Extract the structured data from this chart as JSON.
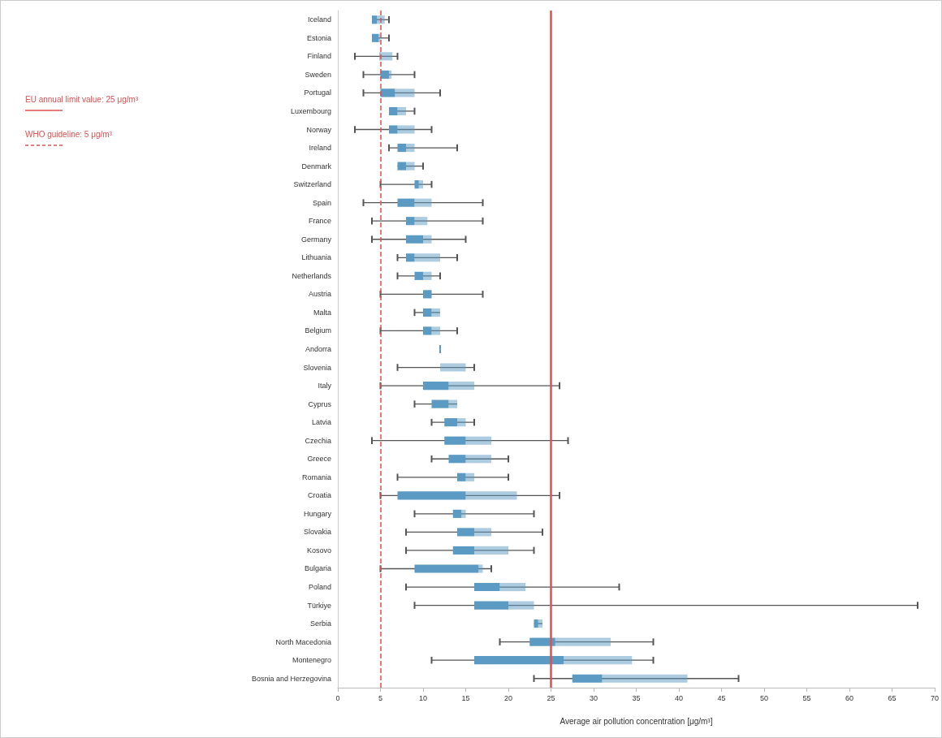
{
  "chart_data": {
    "type": "box",
    "orientation": "horizontal",
    "xlabel": "Average air pollution concentration [μg/m³]",
    "categories": [
      "Iceland",
      "Estonia",
      "Finland",
      "Sweden",
      "Portugal",
      "Luxembourg",
      "Norway",
      "Ireland",
      "Denmark",
      "Switzerland",
      "Spain",
      "France",
      "Germany",
      "Lithuania",
      "Netherlands",
      "Austria",
      "Malta",
      "Belgium",
      "Andorra",
      "Slovenia",
      "Italy",
      "Cyprus",
      "Latvia",
      "Czechia",
      "Greece",
      "Romania",
      "Croatia",
      "Hungary",
      "Slovakia",
      "Kosovo",
      "Bulgaria",
      "Poland",
      "Türkiye",
      "Serbia",
      "North Macedonia",
      "Montenegro",
      "Bosnia and Herzegovina"
    ],
    "colors": [
      "#5b9ac2",
      "#5b9ac2",
      "#5b9ac2",
      "#5b9ac2",
      "#5b9ac2",
      "#5b9ac2",
      "#5b9ac2",
      "#5b9ac2",
      "#5b9ac2",
      "#5b9ac2",
      "#5b9ac2",
      "#5b9ac2",
      "#5b9ac2",
      "#5b9ac2",
      "#5b9ac2",
      "#5b9ac2",
      "#5b9ac2",
      "#5b9ac2",
      "#5b9ac2",
      "#5b9ac2",
      "#5b9ac2",
      "#5b9ac2",
      "#5b9ac2",
      "#5b9ac2",
      "#5b9ac2",
      "#5b9ac2",
      "#5b9ac2",
      "#5b9ac2",
      "#5b9ac2",
      "#5b9ac2",
      "#5b9ac2",
      "#5b9ac2",
      "#5b9ac2",
      "#5b9ac2",
      "#5b9ac2",
      "#5b9ac2",
      "#5b9ac2"
    ],
    "boxes": [
      {
        "low": 4,
        "q1": 4,
        "median": 4.6,
        "q3": 5.5,
        "high": 6
      },
      {
        "low": 4,
        "q1": 4,
        "median": 4.8,
        "q3": 5,
        "high": 6
      },
      {
        "low": 2,
        "q1": 4.9,
        "median": 5,
        "q3": 6.4,
        "high": 7
      },
      {
        "low": 3,
        "q1": 5,
        "median": 6,
        "q3": 6.3,
        "high": 9
      },
      {
        "low": 3,
        "q1": 5,
        "median": 6.7,
        "q3": 9,
        "high": 12
      },
      {
        "low": 6,
        "q1": 6,
        "median": 7,
        "q3": 8,
        "high": 9
      },
      {
        "low": 2,
        "q1": 6,
        "median": 7,
        "q3": 9,
        "high": 11
      },
      {
        "low": 6,
        "q1": 7,
        "median": 8,
        "q3": 9,
        "high": 14
      },
      {
        "low": 7,
        "q1": 7,
        "median": 8,
        "q3": 9,
        "high": 10
      },
      {
        "low": 5,
        "q1": 9,
        "median": 9.5,
        "q3": 10,
        "high": 11
      },
      {
        "low": 3,
        "q1": 7,
        "median": 9,
        "q3": 11,
        "high": 17
      },
      {
        "low": 4,
        "q1": 8,
        "median": 9,
        "q3": 10.5,
        "high": 17
      },
      {
        "low": 4,
        "q1": 8,
        "median": 10,
        "q3": 11,
        "high": 15
      },
      {
        "low": 7,
        "q1": 8,
        "median": 9,
        "q3": 12,
        "high": 14
      },
      {
        "low": 7,
        "q1": 9,
        "median": 10,
        "q3": 11,
        "high": 12
      },
      {
        "low": 5,
        "q1": 10,
        "median": 11,
        "q3": 11,
        "high": 17
      },
      {
        "low": 9,
        "q1": 10,
        "median": 11,
        "q3": 12,
        "high": 12
      },
      {
        "low": 5,
        "q1": 10,
        "median": 11,
        "q3": 12,
        "high": 14
      },
      {
        "low": 12,
        "q1": 12,
        "median": 12,
        "q3": 12,
        "high": 12
      },
      {
        "low": 7,
        "q1": 12,
        "median": 12,
        "q3": 15,
        "high": 16
      },
      {
        "low": 5,
        "q1": 10,
        "median": 13,
        "q3": 16,
        "high": 26
      },
      {
        "low": 9,
        "q1": 11,
        "median": 13,
        "q3": 14,
        "high": 14
      },
      {
        "low": 11,
        "q1": 12.5,
        "median": 14,
        "q3": 15,
        "high": 16
      },
      {
        "low": 4,
        "q1": 12.5,
        "median": 15,
        "q3": 18,
        "high": 27
      },
      {
        "low": 11,
        "q1": 13,
        "median": 15,
        "q3": 18,
        "high": 20
      },
      {
        "low": 7,
        "q1": 14,
        "median": 15,
        "q3": 16,
        "high": 20
      },
      {
        "low": 5,
        "q1": 7,
        "median": 15,
        "q3": 21,
        "high": 26
      },
      {
        "low": 9,
        "q1": 13.5,
        "median": 14.5,
        "q3": 15,
        "high": 23
      },
      {
        "low": 8,
        "q1": 14,
        "median": 16,
        "q3": 18,
        "high": 24
      },
      {
        "low": 8,
        "q1": 13.5,
        "median": 16,
        "q3": 20,
        "high": 23
      },
      {
        "low": 5,
        "q1": 9,
        "median": 16.5,
        "q3": 17,
        "high": 18
      },
      {
        "low": 8,
        "q1": 16,
        "median": 19,
        "q3": 22,
        "high": 33
      },
      {
        "low": 9,
        "q1": 16,
        "median": 20,
        "q3": 23,
        "high": 68
      },
      {
        "low": 23,
        "q1": 23,
        "median": 23.5,
        "q3": 24,
        "high": 24
      },
      {
        "low": 19,
        "q1": 22.5,
        "median": 25.5,
        "q3": 32,
        "high": 37
      },
      {
        "low": 11,
        "q1": 16,
        "median": 26.5,
        "q3": 34.5,
        "high": 37
      },
      {
        "low": 23,
        "q1": 27.5,
        "median": 31,
        "q3": 41,
        "high": 47
      }
    ],
    "xlim": [
      0,
      70
    ],
    "xticks": [
      0,
      5,
      10,
      15,
      20,
      25,
      30,
      35,
      40,
      45,
      50,
      55,
      60,
      65,
      70
    ],
    "grid": false,
    "ref_lines": [
      {
        "axis": "x",
        "value": 25,
        "label": "EU annual limit value: 25 μg/m³",
        "color": "#e05050",
        "line_style": "solid"
      },
      {
        "axis": "x",
        "value": 5,
        "label": "WHO guideline: 5 μg/m³",
        "color": "#e05050",
        "line_style": "dashed"
      }
    ]
  }
}
